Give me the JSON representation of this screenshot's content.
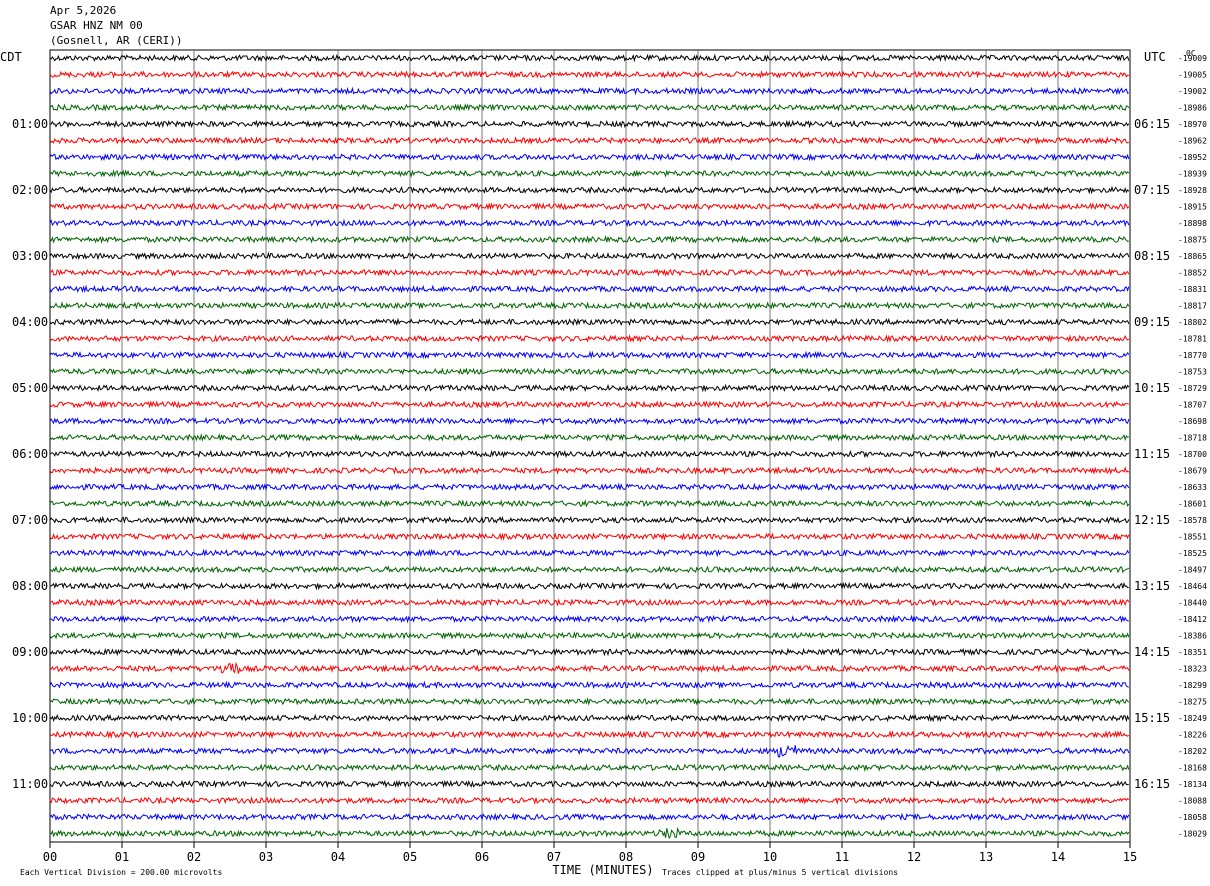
{
  "header": {
    "date": "Apr 5,2026",
    "station": "GSAR HNZ NM 00",
    "location": "(Gosnell, AR (CERI))"
  },
  "left_tz": "CDT",
  "right_tz": "UTC",
  "corner_label": "0C",
  "chart_data": {
    "type": "line",
    "title": "",
    "xlabel": "TIME (MINUTES)",
    "x_ticks": [
      "00",
      "01",
      "02",
      "03",
      "04",
      "05",
      "06",
      "07",
      "08",
      "09",
      "10",
      "11",
      "12",
      "13",
      "14",
      "15"
    ],
    "xlim": [
      0,
      15
    ],
    "row_colors": [
      "#000000",
      "#ff0000",
      "#0000ff",
      "#006400"
    ],
    "rows": 48,
    "left_hour_labels": [
      "01:00",
      "02:00",
      "03:00",
      "04:00",
      "05:00",
      "06:00",
      "07:00",
      "08:00",
      "09:00",
      "10:00",
      "11:00"
    ],
    "right_hour_labels": [
      "06:15",
      "07:15",
      "08:15",
      "09:15",
      "10:15",
      "11:15",
      "12:15",
      "13:15",
      "14:15",
      "15:15",
      "16:15"
    ],
    "row_offsets": [
      "-19009",
      "-19005",
      "-19002",
      "-18986",
      "-18970",
      "-18962",
      "-18952",
      "-18939",
      "-18928",
      "-18915",
      "-18898",
      "-18875",
      "-18865",
      "-18852",
      "-18831",
      "-18817",
      "-18802",
      "-18781",
      "-18770",
      "-18753",
      "-18729",
      "-18707",
      "-18698",
      "-18718",
      "-18700",
      "-18679",
      "-18633",
      "-18601",
      "-18578",
      "-18551",
      "-18525",
      "-18497",
      "-18464",
      "-18440",
      "-18412",
      "-18386",
      "-18351",
      "-18323",
      "-18299",
      "-18275",
      "-18249",
      "-18226",
      "-18202",
      "-18168",
      "-18134",
      "-18088",
      "-18058",
      "-18029"
    ],
    "events": [
      {
        "row": 37,
        "minute": 2.5,
        "amplitude": 1.0
      },
      {
        "row": 42,
        "minute": 10.25,
        "amplitude": 1.0
      },
      {
        "row": 47,
        "minute": 8.6,
        "amplitude": 0.6
      }
    ]
  },
  "footer": {
    "scale_note": "Each Vertical Division =  200.00 microvolts",
    "clip_note": "Traces clipped at plus/minus 5 vertical divisions"
  }
}
